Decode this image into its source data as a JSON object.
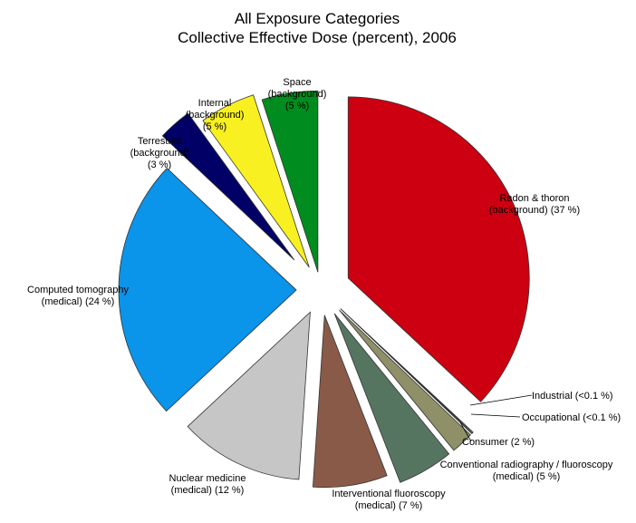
{
  "chart_data": {
    "type": "pie",
    "title": "All Exposure Categories",
    "subtitle": "Collective Effective Dose (percent), 2006",
    "slices": [
      {
        "id": "radon",
        "label_lines": [
          "Radon & thoron",
          "(background) (37 %)"
        ],
        "value": 37,
        "color": "#cc0011"
      },
      {
        "id": "industrial",
        "label_lines": [
          "Industrial (<0.1 %)"
        ],
        "value": 0.08,
        "color": "#dddddd"
      },
      {
        "id": "occupational",
        "label_lines": [
          "Occupational (<0.1 %)"
        ],
        "value": 0.08,
        "color": "#dddddd"
      },
      {
        "id": "consumer",
        "label_lines": [
          "Consumer (2 %)"
        ],
        "value": 2,
        "color": "#8f8f68"
      },
      {
        "id": "conventional",
        "label_lines": [
          "Conventional radiography / fluoroscopy",
          "(medical) (5 %)"
        ],
        "value": 5,
        "color": "#567560"
      },
      {
        "id": "interventional",
        "label_lines": [
          "Interventional fluoroscopy",
          "(medical) (7 %)"
        ],
        "value": 7,
        "color": "#8a5a48"
      },
      {
        "id": "nuclear",
        "label_lines": [
          "Nuclear medicine",
          "(medical) (12 %)"
        ],
        "value": 12,
        "color": "#c6c6c6"
      },
      {
        "id": "ct",
        "label_lines": [
          "Computed tomography",
          "(medical) (24 %)"
        ],
        "value": 24,
        "color": "#0a94ea"
      },
      {
        "id": "terrestrial",
        "label_lines": [
          "Terrestrial",
          "(background)",
          "(3 %)"
        ],
        "value": 3,
        "color": "#000066"
      },
      {
        "id": "internal",
        "label_lines": [
          "Internal",
          "(background)",
          "(5 %)"
        ],
        "value": 5,
        "color": "#f8f020"
      },
      {
        "id": "space",
        "label_lines": [
          "Space",
          "(background)",
          "(5 %)"
        ],
        "value": 5,
        "color": "#008c1e"
      }
    ]
  }
}
